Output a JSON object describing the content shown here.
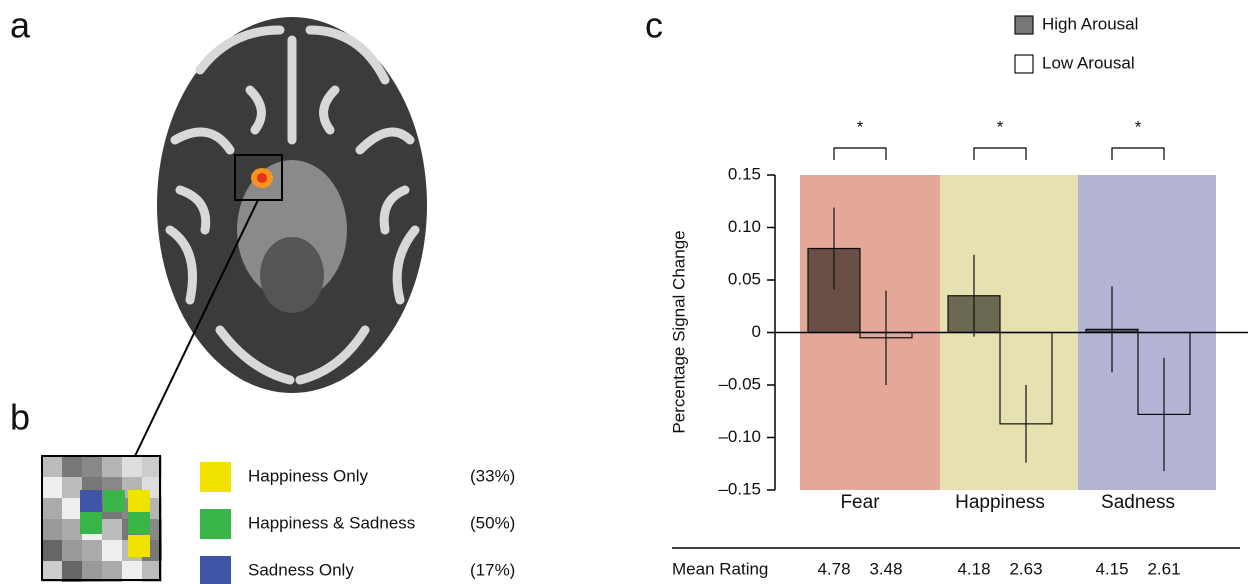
{
  "panel_labels": [
    "a",
    "b",
    "c"
  ],
  "panel_b": {
    "legend": [
      {
        "label": "Happiness Only",
        "percent": "(33%)",
        "color": "#f0e300"
      },
      {
        "label": "Happiness & Sadness",
        "percent": "(50%)",
        "color": "#39b54a"
      },
      {
        "label": "Sadness Only",
        "percent": "(17%)",
        "color": "#3f55a6"
      }
    ]
  },
  "chart_data": {
    "type": "bar",
    "y_label": "Percentage Signal Change",
    "categories": [
      "Fear",
      "Happiness",
      "Sadness"
    ],
    "category_colors": [
      "#e3a898",
      "#e5e1b0",
      "#b3b3d4"
    ],
    "series": [
      {
        "name": "High Arousal",
        "color": "#777777",
        "values": [
          0.08,
          0.035,
          0.003
        ],
        "errors": [
          0.039,
          0.039,
          0.041
        ]
      },
      {
        "name": "Low Arousal",
        "color": "#ffffff",
        "values": [
          -0.005,
          -0.087,
          -0.078
        ],
        "errors": [
          0.045,
          0.037,
          0.054
        ]
      }
    ],
    "annotations": [
      "*",
      "*",
      "*"
    ],
    "ylim": [
      -0.15,
      0.15
    ],
    "yticks": [
      {
        "value": -0.15,
        "label": "–0.15"
      },
      {
        "value": -0.1,
        "label": "–0.10"
      },
      {
        "value": -0.05,
        "label": "–0.05"
      },
      0,
      0.05,
      {
        "value": 0.1,
        "label": "0.10"
      },
      0.15
    ],
    "mean_rating": {
      "label": "Mean Rating",
      "values": [
        4.78,
        3.48,
        4.18,
        2.63,
        4.15,
        2.61
      ]
    }
  }
}
